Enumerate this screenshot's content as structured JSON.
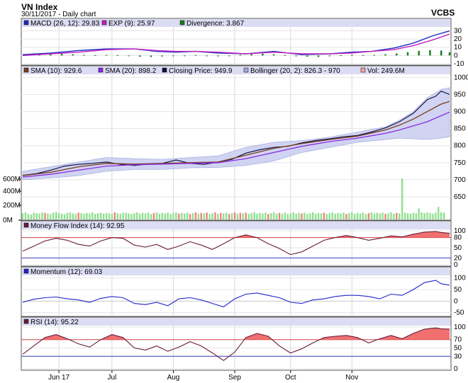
{
  "header": {
    "title": "VN Index",
    "subtitle": "30/11/2017 - Daily chart",
    "brand": "VCBS"
  },
  "chart_data": {
    "type": "line",
    "x_tick_labels": [
      "Jun 17",
      "Jul",
      "Aug",
      "Sep",
      "Oct",
      "Nov"
    ],
    "x_tick_index": [
      13,
      32,
      54,
      76,
      96,
      118
    ],
    "n_days": 154,
    "panels": [
      {
        "id": "macd",
        "type": "line",
        "legend": [
          {
            "label": "MACD (26, 12): 29.83",
            "color": "#1e2bbf"
          },
          {
            "label": "EXP (9): 25.97",
            "color": "#c020c0"
          },
          {
            "label": "Divergence: 3.867",
            "color": "#1a7f1a"
          }
        ],
        "y_ticks": [
          30,
          20,
          10,
          0,
          -10
        ],
        "ylim": [
          -10,
          33
        ],
        "series": [
          {
            "color": "#1e2bbf",
            "x": [
              0,
              10,
              20,
              30,
              40,
              48,
              55,
              62,
              70,
              80,
              90,
              100,
              110,
              118,
              125,
              133,
              140,
              147,
              153
            ],
            "y": [
              1,
              3,
              6,
              8,
              8,
              5,
              4,
              5,
              3,
              2,
              5,
              1,
              2,
              4,
              5,
              9,
              15,
              24,
              29.83
            ]
          },
          {
            "color": "#c020c0",
            "x": [
              0,
              10,
              20,
              30,
              40,
              48,
              55,
              62,
              70,
              80,
              90,
              100,
              110,
              118,
              125,
              133,
              140,
              147,
              153
            ],
            "y": [
              0,
              2,
              4,
              7,
              8,
              6,
              5,
              5,
              4,
              2,
              4,
              2,
              2,
              3,
              5,
              7,
              12,
              19,
              25.97
            ]
          }
        ],
        "histogram": {
          "color": "#1a7f1a",
          "x": [
            2,
            6,
            10,
            14,
            18,
            22,
            26,
            30,
            34,
            38,
            42,
            46,
            50,
            54,
            58,
            62,
            66,
            70,
            74,
            78,
            82,
            86,
            90,
            94,
            98,
            102,
            106,
            110,
            114,
            118,
            122,
            126,
            130,
            134,
            138,
            142,
            146,
            150,
            153
          ],
          "y": [
            1,
            1.5,
            2,
            2.2,
            1.5,
            0.8,
            0.5,
            0.8,
            0.5,
            -0.5,
            -1.5,
            -1.8,
            -1.2,
            -0.5,
            -0.3,
            0.5,
            -0.8,
            -1,
            -0.5,
            0.8,
            1.8,
            2.2,
            1.5,
            0.5,
            -1,
            -1.5,
            -1.8,
            -1,
            0.3,
            1,
            0.5,
            0.8,
            1.5,
            2.5,
            4,
            5.5,
            6.5,
            6,
            3.867
          ]
        }
      },
      {
        "id": "price",
        "type": "line",
        "legend": [
          {
            "label": "SMA (10): 929.6",
            "color": "#7b3c1c"
          },
          {
            "label": "SMA (20): 898.2",
            "color": "#8a2be2"
          },
          {
            "label": "Closing Price: 949.9",
            "color": "#101040"
          },
          {
            "label": "Bollinger (20, 2): 826.3 - 970",
            "color": "#9fa8e0"
          },
          {
            "label": "Vol: 249.6M",
            "color": "#f0a0a0"
          }
        ],
        "y_ticks": [
          1000,
          950,
          900,
          850,
          800,
          750,
          700,
          650
        ],
        "ylim": [
          650,
          1005
        ],
        "vol_ticks": [
          "600M",
          "400M",
          "200M",
          "0M"
        ],
        "vol_max": 1550,
        "series": [
          {
            "name": "Closing Price",
            "color": "#101040",
            "x": [
              0,
              5,
              10,
              15,
              20,
              25,
              30,
              35,
              40,
              45,
              50,
              55,
              60,
              65,
              70,
              75,
              80,
              85,
              90,
              95,
              100,
              105,
              110,
              115,
              120,
              125,
              130,
              135,
              140,
              145,
              148,
              150,
              153
            ],
            "y": [
              713,
              718,
              728,
              740,
              745,
              748,
              752,
              745,
              742,
              746,
              748,
              758,
              748,
              745,
              752,
              760,
              778,
              788,
              795,
              798,
              808,
              815,
              820,
              826,
              830,
              840,
              852,
              870,
              895,
              935,
              945,
              960,
              949.9
            ]
          },
          {
            "name": "SMA (10)",
            "color": "#7b3c1c",
            "x": [
              0,
              10,
              20,
              30,
              40,
              50,
              60,
              70,
              80,
              90,
              100,
              110,
              120,
              130,
              135,
              140,
              145,
              150,
              153
            ],
            "y": [
              712,
              722,
              738,
              748,
              746,
              748,
              750,
              752,
              772,
              792,
              806,
              818,
              828,
              846,
              860,
              878,
              900,
              922,
              929.6
            ]
          },
          {
            "name": "SMA (20)",
            "color": "#8a2be2",
            "x": [
              0,
              10,
              20,
              30,
              40,
              50,
              60,
              70,
              80,
              90,
              100,
              110,
              120,
              130,
              135,
              140,
              145,
              150,
              153
            ],
            "y": [
              708,
              716,
              728,
              740,
              744,
              746,
              748,
              750,
              762,
              780,
              798,
              812,
              822,
              836,
              846,
              858,
              870,
              888,
              898.2
            ]
          }
        ],
        "band": {
          "color": "#c8cdf0",
          "x": [
            0,
            10,
            20,
            30,
            40,
            50,
            60,
            70,
            80,
            90,
            100,
            110,
            120,
            130,
            135,
            140,
            145,
            150,
            153
          ],
          "upper": [
            725,
            738,
            752,
            765,
            762,
            760,
            765,
            770,
            795,
            810,
            815,
            825,
            840,
            855,
            875,
            900,
            940,
            965,
            970
          ],
          "lower": [
            700,
            705,
            712,
            725,
            730,
            730,
            735,
            736,
            742,
            755,
            780,
            795,
            810,
            818,
            822,
            820,
            818,
            822,
            826.3
          ]
        },
        "volume": {
          "up_color": "#90e090",
          "down_color": "#f08080",
          "values": [
            220,
            260,
            200,
            180,
            250,
            230,
            210,
            260,
            240,
            220,
            200,
            250,
            270,
            230,
            210,
            190,
            240,
            260,
            220,
            200,
            250,
            230,
            210,
            240,
            220,
            260,
            200,
            230,
            250,
            210,
            240,
            220,
            200,
            260,
            230,
            210,
            250,
            240,
            220,
            200,
            230,
            260,
            210,
            240,
            220,
            250,
            200,
            230,
            260,
            210,
            240,
            220,
            250,
            200,
            230,
            260,
            210,
            240,
            220,
            250,
            200,
            230,
            260,
            210,
            240,
            220,
            250,
            200,
            230,
            260,
            210,
            240,
            220,
            250,
            200,
            230,
            260,
            210,
            240,
            220,
            250,
            200,
            230,
            260,
            210,
            240,
            220,
            250,
            200,
            230,
            260,
            210,
            240,
            220,
            250,
            200,
            230,
            260,
            210,
            240,
            220,
            250,
            200,
            230,
            260,
            210,
            240,
            220,
            250,
            200,
            230,
            260,
            210,
            240,
            220,
            250,
            200,
            230,
            260,
            210,
            240,
            220,
            250,
            200,
            230,
            260,
            210,
            240,
            220,
            250,
            200,
            230,
            260,
            210,
            240,
            220,
            1500,
            250,
            230,
            210,
            240,
            220,
            400,
            260,
            230,
            250,
            240,
            210,
            250,
            460,
            260,
            249.6
          ],
          "down_days": [
            8,
            20,
            33,
            47,
            56,
            60,
            62,
            64,
            66,
            69,
            71,
            74,
            76,
            78,
            80,
            88,
            92,
            100,
            108,
            116,
            124,
            130,
            134
          ]
        }
      },
      {
        "id": "mfi",
        "type": "area",
        "legend": [
          {
            "label": "Money Flow Index (14): 92.95",
            "color": "#6a1a3a"
          }
        ],
        "y_ticks": [
          100,
          80,
          50,
          20,
          0
        ],
        "ylim": [
          0,
          100
        ],
        "upper_line": 80,
        "lower_line": 20,
        "line_color": "#6a1a3a",
        "fill_color": "#f07070",
        "x": [
          0,
          4,
          8,
          12,
          16,
          20,
          24,
          28,
          32,
          36,
          40,
          44,
          48,
          52,
          56,
          60,
          64,
          68,
          72,
          76,
          80,
          84,
          88,
          92,
          96,
          100,
          104,
          108,
          112,
          116,
          120,
          124,
          128,
          132,
          136,
          140,
          144,
          148,
          150,
          153
        ],
        "y": [
          40,
          55,
          70,
          78,
          72,
          60,
          55,
          70,
          80,
          78,
          58,
          52,
          60,
          45,
          55,
          68,
          58,
          45,
          62,
          80,
          88,
          80,
          62,
          48,
          30,
          38,
          55,
          72,
          80,
          86,
          80,
          72,
          78,
          85,
          82,
          90,
          96,
          98,
          95,
          92.95
        ]
      },
      {
        "id": "momentum",
        "type": "line",
        "legend": [
          {
            "label": "Momentum (12): 69.03",
            "color": "#2222cc"
          }
        ],
        "y_ticks": [
          100,
          50,
          0,
          -50
        ],
        "ylim": [
          -60,
          105
        ],
        "line_color": "#2222cc",
        "x": [
          0,
          4,
          8,
          12,
          16,
          20,
          24,
          28,
          32,
          36,
          40,
          44,
          48,
          52,
          56,
          60,
          64,
          68,
          72,
          76,
          80,
          84,
          88,
          92,
          96,
          100,
          104,
          108,
          112,
          116,
          120,
          124,
          128,
          132,
          136,
          140,
          144,
          148,
          150,
          153
        ],
        "y": [
          -5,
          8,
          15,
          18,
          10,
          5,
          -5,
          12,
          20,
          15,
          -10,
          -15,
          -5,
          -20,
          10,
          15,
          5,
          -10,
          -25,
          10,
          30,
          35,
          25,
          15,
          -5,
          -10,
          5,
          10,
          20,
          25,
          25,
          20,
          10,
          30,
          25,
          50,
          80,
          90,
          75,
          69.03
        ]
      },
      {
        "id": "rsi",
        "type": "area",
        "legend": [
          {
            "label": "RSI (14): 95.22",
            "color": "#6a1a3a"
          }
        ],
        "y_ticks": [
          100,
          70,
          50,
          30,
          0
        ],
        "ylim": [
          0,
          100
        ],
        "upper_line": 70,
        "lower_line": 30,
        "line_color": "#6a1a3a",
        "fill_color": "#f07070",
        "x": [
          0,
          4,
          8,
          12,
          16,
          20,
          24,
          28,
          32,
          36,
          40,
          44,
          48,
          52,
          56,
          60,
          64,
          68,
          72,
          76,
          80,
          84,
          88,
          92,
          96,
          100,
          104,
          108,
          112,
          116,
          120,
          124,
          128,
          132,
          136,
          140,
          144,
          148,
          150,
          153
        ],
        "y": [
          35,
          55,
          75,
          82,
          72,
          60,
          52,
          70,
          82,
          75,
          50,
          45,
          55,
          42,
          52,
          65,
          55,
          38,
          20,
          40,
          75,
          85,
          78,
          55,
          38,
          48,
          62,
          75,
          78,
          80,
          75,
          62,
          72,
          80,
          72,
          85,
          95,
          98,
          96,
          95.22
        ]
      }
    ]
  }
}
